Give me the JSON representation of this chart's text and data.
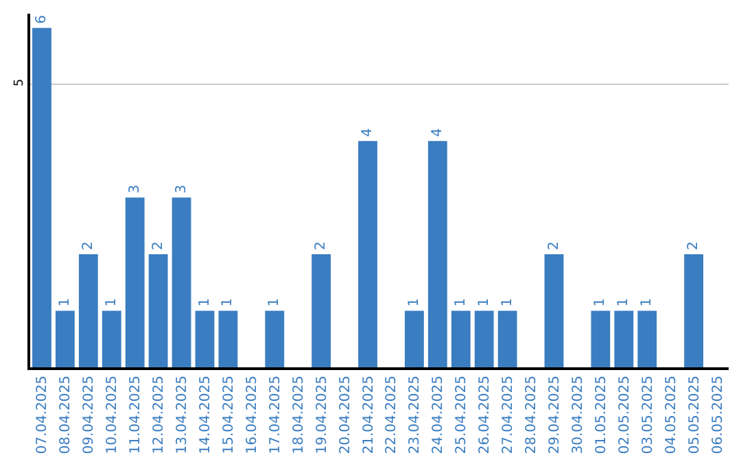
{
  "chart_data": {
    "type": "bar",
    "categories": [
      "07.04.2025",
      "08.04.2025",
      "09.04.2025",
      "10.04.2025",
      "11.04.2025",
      "12.04.2025",
      "13.04.2025",
      "14.04.2025",
      "15.04.2025",
      "16.04.2025",
      "17.04.2025",
      "18.04.2025",
      "19.04.2025",
      "20.04.2025",
      "21.04.2025",
      "22.04.2025",
      "23.04.2025",
      "24.04.2025",
      "25.04.2025",
      "26.04.2025",
      "27.04.2025",
      "28.04.2025",
      "29.04.2025",
      "30.04.2025",
      "01.05.2025",
      "02.05.2025",
      "03.05.2025",
      "04.05.2025",
      "05.05.2025",
      "06.05.2025"
    ],
    "values": [
      6,
      1,
      2,
      1,
      3,
      2,
      3,
      1,
      1,
      0,
      1,
      0,
      2,
      0,
      4,
      0,
      1,
      4,
      1,
      1,
      1,
      0,
      2,
      0,
      1,
      1,
      1,
      0,
      2,
      0
    ],
    "value_labels": [
      "6",
      "1",
      "2",
      "1",
      "3",
      "2",
      "3",
      "1",
      "1",
      null,
      "1",
      null,
      "2",
      null,
      "4",
      null,
      "1",
      "4",
      "1",
      "1",
      "1",
      null,
      "2",
      null,
      "1",
      "1",
      "1",
      null,
      "2",
      null
    ],
    "color": "#3a7dc1",
    "ylim": [
      0,
      6.25
    ],
    "yticks": [
      5
    ],
    "grid": "y",
    "legend": false
  }
}
